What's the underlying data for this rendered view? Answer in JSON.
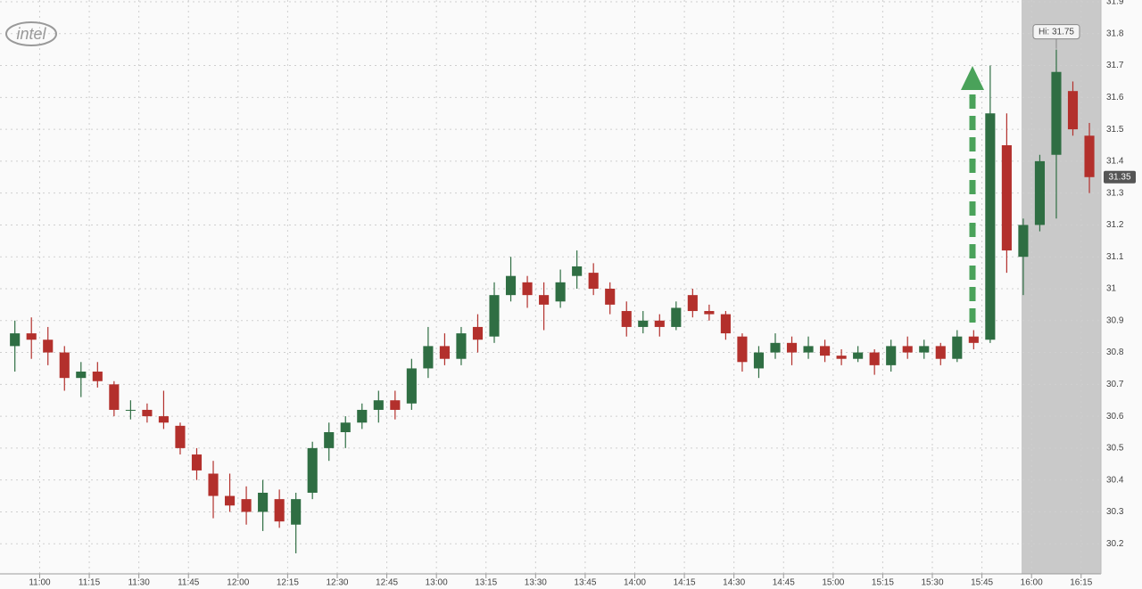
{
  "chart_data": {
    "type": "candlestick",
    "logo": "intel",
    "x": [
      "10:50",
      "10:55",
      "11:00",
      "11:05",
      "11:10",
      "11:15",
      "11:20",
      "11:25",
      "11:30",
      "11:35",
      "11:40",
      "11:45",
      "11:50",
      "11:55",
      "12:00",
      "12:05",
      "12:10",
      "12:15",
      "12:20",
      "12:25",
      "12:30",
      "12:35",
      "12:40",
      "12:45",
      "12:50",
      "12:55",
      "13:00",
      "13:05",
      "13:10",
      "13:15",
      "13:20",
      "13:25",
      "13:30",
      "13:35",
      "13:40",
      "13:45",
      "13:50",
      "13:55",
      "14:00",
      "14:05",
      "14:10",
      "14:15",
      "14:20",
      "14:25",
      "14:30",
      "14:35",
      "14:40",
      "14:45",
      "14:50",
      "14:55",
      "15:00",
      "15:05",
      "15:10",
      "15:15",
      "15:20",
      "15:25",
      "15:30",
      "15:35",
      "15:40",
      "15:45",
      "15:50",
      "15:55",
      "16:00",
      "16:05",
      "16:10",
      "16:15"
    ],
    "open": [
      30.82,
      30.86,
      30.84,
      30.8,
      30.72,
      30.74,
      30.7,
      30.62,
      30.62,
      30.6,
      30.57,
      30.48,
      30.42,
      30.35,
      30.34,
      30.3,
      30.34,
      30.26,
      30.36,
      30.5,
      30.55,
      30.58,
      30.62,
      30.65,
      30.64,
      30.75,
      30.82,
      30.78,
      30.88,
      30.85,
      30.98,
      31.02,
      30.98,
      30.96,
      31.04,
      31.05,
      31.0,
      30.93,
      30.88,
      30.9,
      30.88,
      30.98,
      30.93,
      30.92,
      30.85,
      30.75,
      30.8,
      30.83,
      30.8,
      30.82,
      30.79,
      30.78,
      30.8,
      30.76,
      30.82,
      30.8,
      30.82,
      30.78,
      30.85,
      30.84,
      31.45,
      31.1,
      31.2,
      31.42,
      31.62,
      31.48
    ],
    "high": [
      30.9,
      30.91,
      30.88,
      30.82,
      30.77,
      30.77,
      30.71,
      30.65,
      30.64,
      30.68,
      30.58,
      30.5,
      30.46,
      30.42,
      30.38,
      30.4,
      30.37,
      30.36,
      30.52,
      30.58,
      30.6,
      30.64,
      30.68,
      30.68,
      30.78,
      30.88,
      30.86,
      30.88,
      30.92,
      31.02,
      31.1,
      31.04,
      31.02,
      31.06,
      31.12,
      31.08,
      31.02,
      30.96,
      30.93,
      30.92,
      30.96,
      31.0,
      30.95,
      30.93,
      30.86,
      30.82,
      30.86,
      30.85,
      30.85,
      30.84,
      30.81,
      30.82,
      30.81,
      30.84,
      30.85,
      30.84,
      30.83,
      30.87,
      30.87,
      31.7,
      31.55,
      31.22,
      31.42,
      31.75,
      31.65,
      31.52
    ],
    "low": [
      30.74,
      30.78,
      30.76,
      30.68,
      30.66,
      30.69,
      30.6,
      30.59,
      30.58,
      30.56,
      30.48,
      30.4,
      30.28,
      30.3,
      30.26,
      30.24,
      30.25,
      30.17,
      30.34,
      30.46,
      30.5,
      30.56,
      30.58,
      30.59,
      30.62,
      30.72,
      30.76,
      30.76,
      30.8,
      30.83,
      30.96,
      30.94,
      30.87,
      30.94,
      31.0,
      30.98,
      30.92,
      30.85,
      30.86,
      30.85,
      30.87,
      30.91,
      30.9,
      30.84,
      30.74,
      30.72,
      30.78,
      30.76,
      30.78,
      30.77,
      30.76,
      30.77,
      30.73,
      30.74,
      30.78,
      30.78,
      30.76,
      30.77,
      30.81,
      30.83,
      31.05,
      30.98,
      31.18,
      31.22,
      31.48,
      31.3
    ],
    "close": [
      30.86,
      30.84,
      30.8,
      30.72,
      30.74,
      30.71,
      30.62,
      30.62,
      30.6,
      30.58,
      30.5,
      30.43,
      30.35,
      30.32,
      30.3,
      30.36,
      30.27,
      30.34,
      30.5,
      30.55,
      30.58,
      30.62,
      30.65,
      30.62,
      30.75,
      30.82,
      30.78,
      30.86,
      30.84,
      30.98,
      31.04,
      30.98,
      30.95,
      31.02,
      31.07,
      31.0,
      30.95,
      30.88,
      30.9,
      30.88,
      30.94,
      30.93,
      30.92,
      30.86,
      30.77,
      30.8,
      30.83,
      30.8,
      30.82,
      30.79,
      30.78,
      30.8,
      30.76,
      30.82,
      30.8,
      30.82,
      30.78,
      30.85,
      30.83,
      31.55,
      31.12,
      31.2,
      31.4,
      31.68,
      31.5,
      31.35
    ],
    "up_color": "#2f6e43",
    "down_color": "#b3302c",
    "xlim": [
      "10:48",
      "16:21"
    ],
    "xticks": [
      "11:00",
      "11:15",
      "11:30",
      "11:45",
      "12:00",
      "12:15",
      "12:30",
      "12:45",
      "13:00",
      "13:15",
      "13:30",
      "13:45",
      "14:00",
      "14:15",
      "14:30",
      "14:45",
      "15:00",
      "15:15",
      "15:30",
      "15:45",
      "16:00",
      "16:15"
    ],
    "ylim": [
      30.1,
      31.9
    ],
    "yticks": [
      30.2,
      30.3,
      30.4,
      30.5,
      30.6,
      30.7,
      30.8,
      30.9,
      31,
      31.1,
      31.2,
      31.3,
      31.4,
      31.5,
      31.6,
      31.7,
      31.8,
      31.9
    ],
    "grid": true,
    "annotations": [
      {
        "text": "Hi: 31.75",
        "value": 31.75
      }
    ],
    "last_price": 31.35
  }
}
